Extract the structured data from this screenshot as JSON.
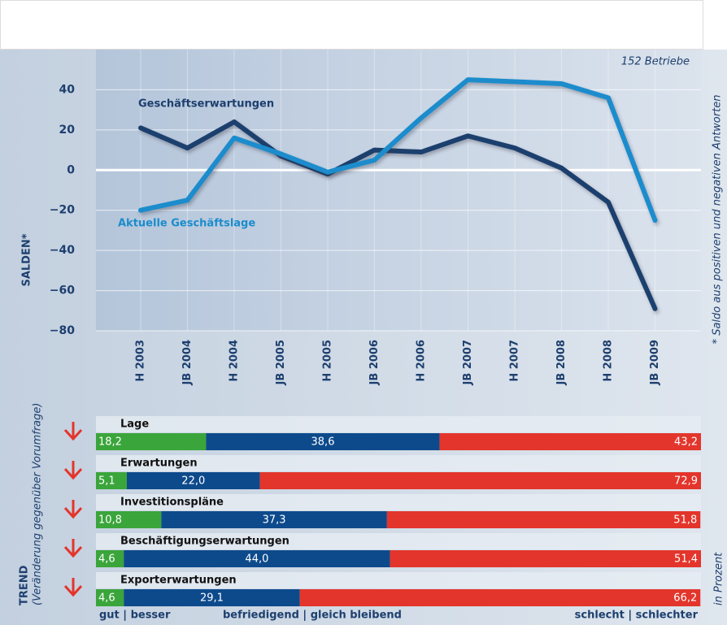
{
  "chart_data": [
    {
      "type": "line",
      "annotation": "152 Betriebe",
      "y_label": "SALDEN*",
      "footnote": "* Saldo aus positiven und negativen Antworten",
      "categories": [
        "H 2003",
        "JB 2004",
        "H 2004",
        "JB 2005",
        "H 2005",
        "JB 2006",
        "H 2006",
        "JB 2007",
        "H 2007",
        "JB 2008",
        "H 2008",
        "JB 2009"
      ],
      "series": [
        {
          "name": "Geschäftserwartungen",
          "color": "#1d3f6e",
          "values": [
            21,
            11,
            24,
            7,
            -2,
            10,
            9,
            17,
            11,
            1,
            -16,
            -69
          ]
        },
        {
          "name": "Aktuelle Geschäftslage",
          "color": "#1b8ccc",
          "values": [
            -20,
            -15,
            16,
            8,
            -1,
            5,
            26,
            45,
            44,
            43,
            36,
            -25
          ]
        }
      ],
      "ylim": [
        -80,
        60
      ],
      "yticks": [
        {
          "value": -80,
          "label": "−80"
        },
        {
          "value": -60,
          "label": "−60"
        },
        {
          "value": -40,
          "label": "−40"
        },
        {
          "value": -20,
          "label": "−20"
        },
        0,
        20,
        40
      ],
      "grid": true
    },
    {
      "type": "stacked_bar_horizontal",
      "title": "TREND",
      "subtitle": "(Veränderung gegenüber Vorumfrage)",
      "unit_label": "in Prozent",
      "categories": [
        "Lage",
        "Erwartungen",
        "Investitionspläne",
        "Beschäftigungserwartungen",
        "Exporterwartungen"
      ],
      "xlim": [
        0,
        100
      ],
      "series": [
        {
          "name": "gut | besser",
          "color": "#3aa53a",
          "values": [
            18.2,
            5.1,
            10.8,
            4.6,
            4.6
          ],
          "value_labels": [
            "18,2",
            "5,1",
            "10,8",
            "4,6",
            "4,6"
          ]
        },
        {
          "name": "befriedigend | gleich bleibend",
          "color": "#0d4a8c",
          "values": [
            38.6,
            22.0,
            37.3,
            44.0,
            29.1
          ],
          "value_labels": [
            "38,6",
            "22,0",
            "37,3",
            "44,0",
            "29,1"
          ]
        },
        {
          "name": "schlecht | schlechter",
          "color": "#e3352b",
          "values": [
            43.2,
            72.9,
            51.8,
            51.4,
            66.2
          ],
          "value_labels": [
            "43,2",
            "72,9",
            "51,8",
            "51,4",
            "66,2"
          ]
        }
      ]
    }
  ]
}
